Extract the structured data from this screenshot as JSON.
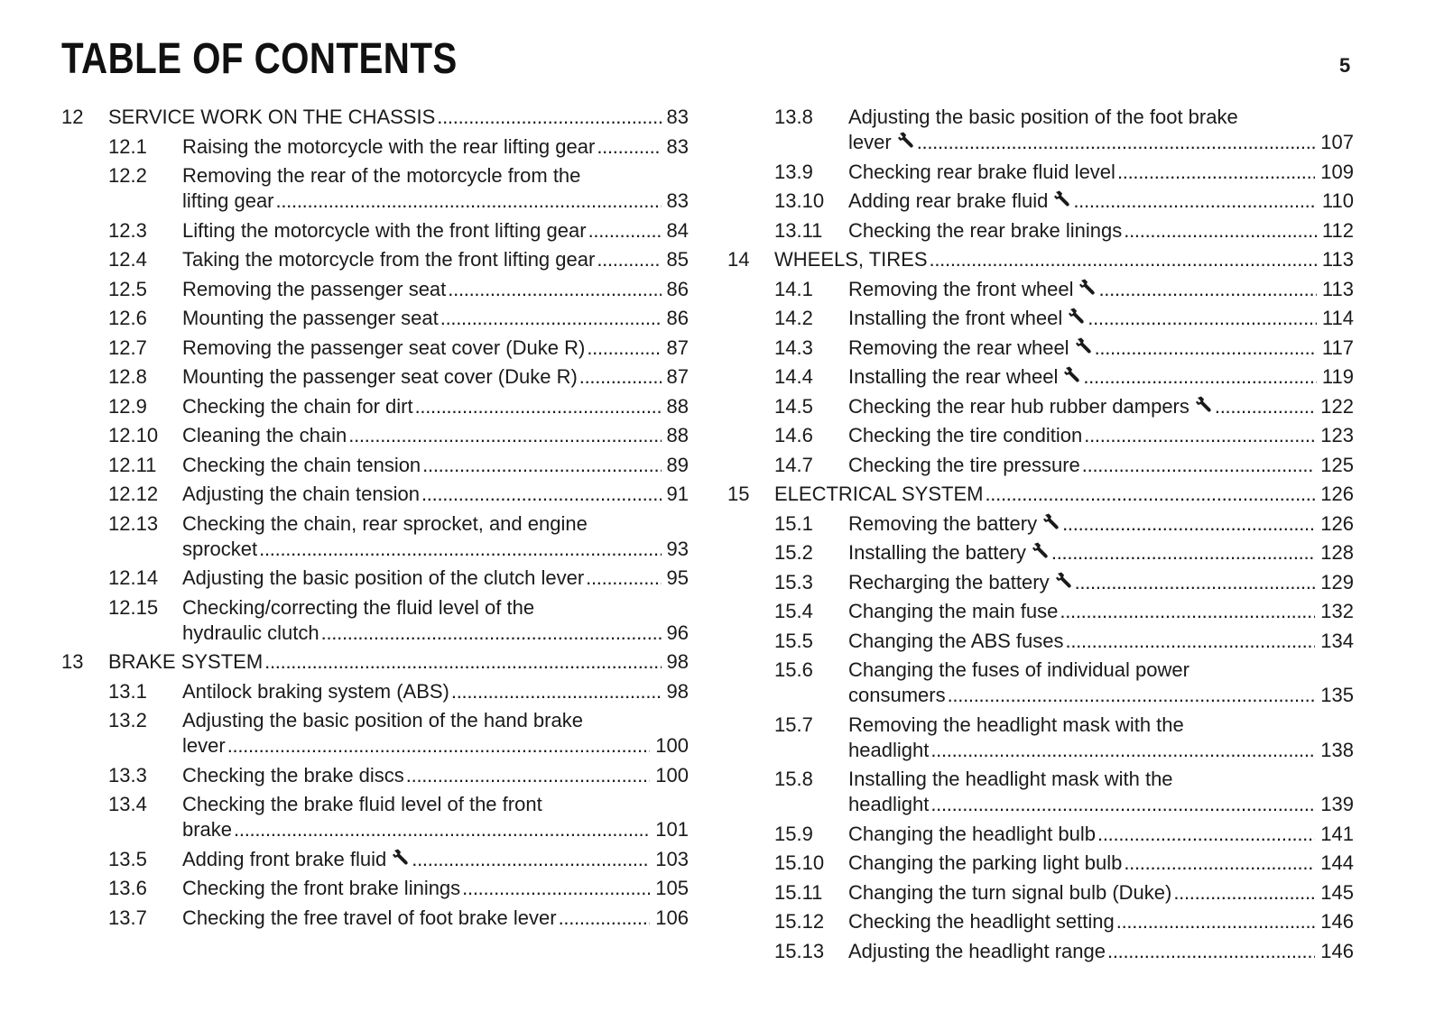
{
  "header": {
    "title": "TABLE OF CONTENTS",
    "page_number": "5"
  },
  "icons": {
    "tool": "wrench-icon"
  },
  "columns": {
    "left": [
      {
        "level": 1,
        "num": "12",
        "title": "SERVICE WORK ON THE CHASSIS",
        "page": "83"
      },
      {
        "level": 2,
        "num": "12.1",
        "title": "Raising the motorcycle with the rear lifting gear",
        "page": "83"
      },
      {
        "level": 2,
        "num": "12.2",
        "title": "Removing the rear of the motorcycle from the",
        "title2": "lifting gear",
        "page": "83"
      },
      {
        "level": 2,
        "num": "12.3",
        "title": "Lifting the motorcycle with the front lifting gear",
        "page": "84"
      },
      {
        "level": 2,
        "num": "12.4",
        "title": "Taking the motorcycle from the front lifting gear",
        "page": "85"
      },
      {
        "level": 2,
        "num": "12.5",
        "title": "Removing the passenger seat",
        "page": "86"
      },
      {
        "level": 2,
        "num": "12.6",
        "title": "Mounting the passenger seat",
        "page": "86"
      },
      {
        "level": 2,
        "num": "12.7",
        "title": "Removing the passenger seat cover (Duke R)",
        "page": "87"
      },
      {
        "level": 2,
        "num": "12.8",
        "title": "Mounting the passenger seat cover (Duke R)",
        "page": "87"
      },
      {
        "level": 2,
        "num": "12.9",
        "title": "Checking the chain for dirt",
        "page": "88"
      },
      {
        "level": 2,
        "num": "12.10",
        "title": "Cleaning the chain",
        "page": "88"
      },
      {
        "level": 2,
        "num": "12.11",
        "title": "Checking the chain tension",
        "page": "89"
      },
      {
        "level": 2,
        "num": "12.12",
        "title": "Adjusting the chain tension",
        "page": "91"
      },
      {
        "level": 2,
        "num": "12.13",
        "title": "Checking the chain, rear sprocket, and engine",
        "title2": "sprocket",
        "page": "93"
      },
      {
        "level": 2,
        "num": "12.14",
        "title": "Adjusting the basic position of the clutch lever",
        "page": "95"
      },
      {
        "level": 2,
        "num": "12.15",
        "title": "Checking/correcting the fluid level of the",
        "title2": "hydraulic clutch",
        "page": "96"
      },
      {
        "level": 1,
        "num": "13",
        "title": "BRAKE SYSTEM",
        "page": "98"
      },
      {
        "level": 2,
        "num": "13.1",
        "title": "Antilock braking system (ABS)",
        "page": "98"
      },
      {
        "level": 2,
        "num": "13.2",
        "title": "Adjusting the basic position of the hand brake",
        "title2": "lever",
        "page": "100"
      },
      {
        "level": 2,
        "num": "13.3",
        "title": "Checking the brake discs",
        "page": "100"
      },
      {
        "level": 2,
        "num": "13.4",
        "title": "Checking the brake fluid level of the front",
        "title2": "brake",
        "page": "101"
      },
      {
        "level": 2,
        "num": "13.5",
        "title": "Adding front brake fluid",
        "page": "103",
        "wrench": true
      },
      {
        "level": 2,
        "num": "13.6",
        "title": "Checking the front brake linings",
        "page": "105"
      },
      {
        "level": 2,
        "num": "13.7",
        "title": "Checking the free travel of foot brake lever",
        "page": "106"
      }
    ],
    "right": [
      {
        "level": 2,
        "num": "13.8",
        "title": "Adjusting the basic position of the foot brake",
        "title2": "lever",
        "page": "107",
        "wrench": true
      },
      {
        "level": 2,
        "num": "13.9",
        "title": "Checking rear brake fluid level",
        "page": "109"
      },
      {
        "level": 2,
        "num": "13.10",
        "title": "Adding rear brake fluid",
        "page": "110",
        "wrench": true
      },
      {
        "level": 2,
        "num": "13.11",
        "title": "Checking the rear brake linings",
        "page": "112"
      },
      {
        "level": 1,
        "num": "14",
        "title": "WHEELS, TIRES",
        "page": "113"
      },
      {
        "level": 2,
        "num": "14.1",
        "title": "Removing the front wheel",
        "page": "113",
        "wrench": true
      },
      {
        "level": 2,
        "num": "14.2",
        "title": "Installing the front wheel",
        "page": "114",
        "wrench": true
      },
      {
        "level": 2,
        "num": "14.3",
        "title": "Removing the rear wheel",
        "page": "117",
        "wrench": true
      },
      {
        "level": 2,
        "num": "14.4",
        "title": "Installing the rear wheel",
        "page": "119",
        "wrench": true
      },
      {
        "level": 2,
        "num": "14.5",
        "title": "Checking the rear hub rubber dampers",
        "page": "122",
        "wrench": true
      },
      {
        "level": 2,
        "num": "14.6",
        "title": "Checking the tire condition",
        "page": "123"
      },
      {
        "level": 2,
        "num": "14.7",
        "title": "Checking the tire pressure",
        "page": "125"
      },
      {
        "level": 1,
        "num": "15",
        "title": "ELECTRICAL SYSTEM",
        "page": "126"
      },
      {
        "level": 2,
        "num": "15.1",
        "title": "Removing the battery",
        "page": "126",
        "wrench": true
      },
      {
        "level": 2,
        "num": "15.2",
        "title": "Installing the battery",
        "page": "128",
        "wrench": true
      },
      {
        "level": 2,
        "num": "15.3",
        "title": "Recharging the battery",
        "page": "129",
        "wrench": true
      },
      {
        "level": 2,
        "num": "15.4",
        "title": "Changing the main fuse",
        "page": "132"
      },
      {
        "level": 2,
        "num": "15.5",
        "title": "Changing the ABS fuses",
        "page": "134"
      },
      {
        "level": 2,
        "num": "15.6",
        "title": "Changing the fuses of individual power",
        "title2": "consumers",
        "page": "135"
      },
      {
        "level": 2,
        "num": "15.7",
        "title": "Removing the headlight mask with the",
        "title2": "headlight",
        "page": "138"
      },
      {
        "level": 2,
        "num": "15.8",
        "title": "Installing the headlight mask with the",
        "title2": "headlight",
        "page": "139"
      },
      {
        "level": 2,
        "num": "15.9",
        "title": "Changing the headlight bulb",
        "page": "141"
      },
      {
        "level": 2,
        "num": "15.10",
        "title": "Changing the parking light bulb",
        "page": "144"
      },
      {
        "level": 2,
        "num": "15.11",
        "title": "Changing the turn signal bulb (Duke)",
        "page": "145"
      },
      {
        "level": 2,
        "num": "15.12",
        "title": "Checking the headlight setting",
        "page": "146"
      },
      {
        "level": 2,
        "num": "15.13",
        "title": "Adjusting the headlight range",
        "page": "146"
      }
    ]
  }
}
